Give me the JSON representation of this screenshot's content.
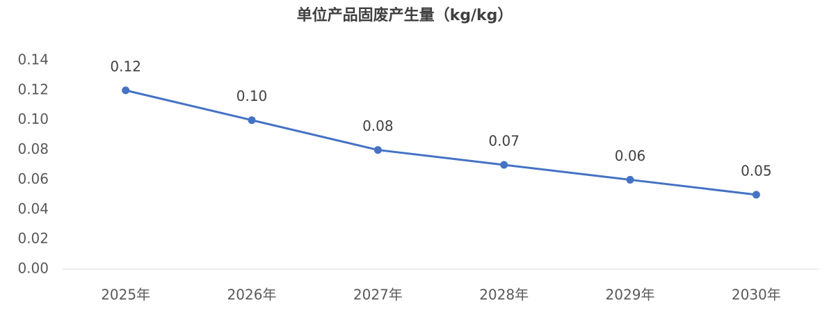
{
  "chart_data": {
    "type": "line",
    "title": "单位产品固废产生量（kg/kg）",
    "categories": [
      "2025年",
      "2026年",
      "2027年",
      "2028年",
      "2029年",
      "2030年"
    ],
    "series": [
      {
        "name": "单位产品固废产生量",
        "color": "#4472c4",
        "values": [
          0.12,
          0.1,
          0.08,
          0.07,
          0.06,
          0.05
        ],
        "value_labels": [
          "0.12",
          "0.10",
          "0.08",
          "0.07",
          "0.06",
          "0.05"
        ]
      }
    ],
    "ylim": [
      0,
      0.14
    ],
    "yticks": [
      {
        "value": 0,
        "label": "0.00"
      },
      0.02,
      0.04,
      0.06,
      0.08,
      {
        "value": 0.1,
        "label": "0.10"
      },
      0.12,
      0.14
    ],
    "grid": false
  }
}
